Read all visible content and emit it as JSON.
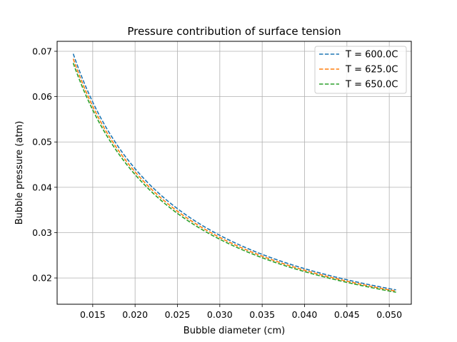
{
  "chart_data": {
    "type": "line",
    "title": "Pressure contribution of surface tension",
    "xlabel": "Bubble diameter (cm)",
    "ylabel": "Bubble pressure (atm)",
    "xlim": [
      0.0108,
      0.0526
    ],
    "ylim": [
      0.0142,
      0.0722
    ],
    "xticks": [
      0.015,
      0.02,
      0.025,
      0.03,
      0.035,
      0.04,
      0.045,
      0.05
    ],
    "xtick_labels": [
      "0.015",
      "0.020",
      "0.025",
      "0.030",
      "0.035",
      "0.040",
      "0.045",
      "0.050"
    ],
    "yticks": [
      0.02,
      0.03,
      0.04,
      0.05,
      0.06,
      0.07
    ],
    "ytick_labels": [
      "0.02",
      "0.03",
      "0.04",
      "0.05",
      "0.06",
      "0.07"
    ],
    "grid": true,
    "legend_position": "top-right",
    "x_range": [
      0.0127,
      0.0508
    ],
    "series": [
      {
        "name": "T = 600.0C",
        "color": "#1f77b4",
        "k": 0.000882,
        "x": [
          0.0127,
          0.015,
          0.02,
          0.025,
          0.03,
          0.035,
          0.04,
          0.045,
          0.0508
        ],
        "values": [
          0.0695,
          0.0588,
          0.0441,
          0.0353,
          0.0294,
          0.0252,
          0.0221,
          0.0196,
          0.0174
        ]
      },
      {
        "name": "T = 625.0C",
        "color": "#ff7f0e",
        "k": 0.000868,
        "x": [
          0.0127,
          0.015,
          0.02,
          0.025,
          0.03,
          0.035,
          0.04,
          0.045,
          0.0508
        ],
        "values": [
          0.0683,
          0.0579,
          0.0434,
          0.0347,
          0.0289,
          0.0248,
          0.0217,
          0.0193,
          0.0171
        ]
      },
      {
        "name": "T = 650.0C",
        "color": "#2ca02c",
        "k": 0.000856,
        "x": [
          0.0127,
          0.015,
          0.02,
          0.025,
          0.03,
          0.035,
          0.04,
          0.045,
          0.0508
        ],
        "values": [
          0.0674,
          0.0571,
          0.0428,
          0.0342,
          0.0285,
          0.0245,
          0.0214,
          0.019,
          0.0169
        ]
      }
    ]
  }
}
